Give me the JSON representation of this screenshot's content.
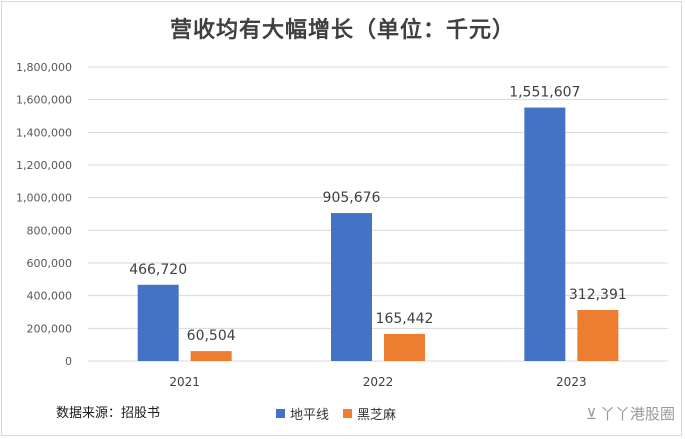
{
  "chart_data": {
    "type": "bar",
    "title": "营收均有大幅增长（单位：千元）",
    "categories": [
      "2021",
      "2022",
      "2023"
    ],
    "series": [
      {
        "name": "地平线",
        "color": "#4472c4",
        "values": [
          466720,
          905676,
          1551607
        ],
        "labels": [
          "466,720",
          "905,676",
          "1,551,607"
        ]
      },
      {
        "name": "黑芝麻",
        "color": "#ed7d31",
        "values": [
          60504,
          165442,
          312391
        ],
        "labels": [
          "60,504",
          "165,442",
          "312,391"
        ]
      }
    ],
    "ylim": [
      0,
      1800000
    ],
    "yticks": [
      0,
      200000,
      400000,
      600000,
      800000,
      1000000,
      1200000,
      1400000,
      1600000,
      1800000
    ],
    "ytick_labels": [
      "0",
      "200,000",
      "400,000",
      "600,000",
      "800,000",
      "1,000,000",
      "1,200,000",
      "1,400,000",
      "1,600,000",
      "1,800,000"
    ],
    "grid": true,
    "legend_position": "bottom"
  },
  "source_note": "数据来源：招股书",
  "watermark": "丫丫港股圈"
}
